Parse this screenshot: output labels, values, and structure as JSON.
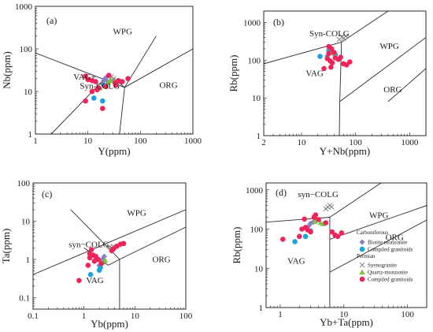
{
  "colors": {
    "biotite_monzonite": "#8b7fc7",
    "compiled_carboniferous": "#1aa3e0",
    "syenogranite": "#7f8a7f",
    "quartz_monzonite": "#7cc242",
    "compiled_permian": "#f0245a",
    "line": "#2a2a2a"
  },
  "legend": {
    "carboniferous": "Carboniferous",
    "biotite_monzonite": "Biotite monzonite",
    "compiled_carboniferous": "Compiled granitoids",
    "permian": "Permian",
    "syenogranite": "Syenogranite",
    "quartz_monzonite": "Quartz-monzonite",
    "compiled_permian": "Compiled granitoids"
  },
  "chart_data": [
    {
      "type": "scatter",
      "panel": "(a)",
      "xlabel": "Y(ppm)",
      "ylabel": "Nb(ppm)",
      "xscale": "log",
      "yscale": "log",
      "xlim": [
        1,
        1000
      ],
      "ylim": [
        1,
        1000
      ],
      "xticks": [
        1,
        10,
        100,
        1000
      ],
      "yticks": [
        1,
        10,
        100,
        1000
      ],
      "xticklabels": [
        "1",
        "10",
        "100",
        "1000"
      ],
      "yticklabels": [
        "1",
        "10",
        "100",
        "1000"
      ],
      "field_labels": [
        {
          "text": "WPG",
          "x": 30,
          "y": 220
        },
        {
          "text": "VAG+",
          "x": 5.3,
          "y": 19
        },
        {
          "text": "Syn-COLG",
          "x": 7,
          "y": 11.5
        },
        {
          "text": "ORG",
          "x": 230,
          "y": 12
        }
      ],
      "boundaries": [
        [
          [
            1,
            80
          ],
          [
            50,
            12.5
          ]
        ],
        [
          [
            50,
            12.5
          ],
          [
            200,
            200
          ]
        ],
        [
          [
            40,
            1
          ],
          [
            50,
            12.5
          ]
        ],
        [
          [
            50,
            12.5
          ],
          [
            1000,
            100
          ]
        ],
        [
          [
            25,
            25
          ],
          [
            50,
            12.5
          ]
        ],
        [
          [
            2,
            1
          ],
          [
            25,
            25
          ]
        ]
      ],
      "series": [
        {
          "name": "Biotite monzonite",
          "marker": "diamond",
          "points": [
            [
              21,
              20
            ],
            [
              20,
              18
            ],
            [
              24,
              17
            ],
            [
              19,
              15
            ],
            [
              22,
              21
            ]
          ]
        },
        {
          "name": "Compiled granitoids",
          "marker": "circle",
          "points": [
            [
              13,
              7
            ],
            [
              19,
              6
            ],
            [
              20,
              14
            ]
          ]
        },
        {
          "name": "Syenogranite",
          "marker": "cross",
          "points": [
            [
              28,
              22
            ],
            [
              31,
              20
            ],
            [
              30,
              18
            ]
          ]
        },
        {
          "name": "Quartz-monzonite",
          "marker": "triangle",
          "points": [
            [
              24,
              16
            ],
            [
              27,
              18
            ],
            [
              17,
              12
            ]
          ]
        },
        {
          "name": "Compiled granitoids",
          "marker": "circle",
          "points": [
            [
              9,
              23
            ],
            [
              10,
              19
            ],
            [
              12,
              18
            ],
            [
              14,
              17
            ],
            [
              15,
              11
            ],
            [
              16,
              12
            ],
            [
              12,
              10
            ],
            [
              9,
              6
            ],
            [
              19,
              4
            ],
            [
              22,
              13
            ],
            [
              33,
              16
            ],
            [
              38,
              18
            ],
            [
              45,
              17
            ],
            [
              58,
              20
            ],
            [
              34,
              14
            ],
            [
              25,
              24
            ]
          ]
        }
      ]
    },
    {
      "type": "scatter",
      "panel": "(b)",
      "xlabel": "Y+Nb(ppm)",
      "ylabel": "Rb(ppm)",
      "xscale": "log",
      "yscale": "log",
      "xlim": [
        2,
        2000
      ],
      "ylim": [
        1,
        2000
      ],
      "xticks": [
        2,
        10,
        100,
        1000
      ],
      "yticks": [
        1,
        10,
        100,
        1000
      ],
      "xticklabels": [
        "2",
        "10",
        "100",
        "1000"
      ],
      "yticklabels": [
        "1",
        "10",
        "100",
        "1000"
      ],
      "field_labels": [
        {
          "text": "Syn-COLG",
          "x": 14,
          "y": 430
        },
        {
          "text": "WPG",
          "x": 280,
          "y": 200
        },
        {
          "text": "VAG",
          "x": 12,
          "y": 38
        },
        {
          "text": "ORG",
          "x": 330,
          "y": 14
        }
      ],
      "boundaries": [
        [
          [
            2,
            80
          ],
          [
            55,
            300
          ]
        ],
        [
          [
            55,
            300
          ],
          [
            400,
            2000
          ]
        ],
        [
          [
            55,
            300
          ],
          [
            51,
            8
          ]
        ],
        [
          [
            51,
            8
          ],
          [
            50,
            1
          ]
        ],
        [
          [
            51,
            8
          ],
          [
            2000,
            400
          ]
        ],
        [
          [
            400,
            8
          ],
          [
            2000,
            60
          ]
        ]
      ],
      "series": [
        {
          "name": "Biotite monzonite",
          "marker": "diamond",
          "points": [
            [
              33,
              150
            ],
            [
              36,
              170
            ],
            [
              30,
              130
            ],
            [
              38,
              160
            ]
          ]
        },
        {
          "name": "Compiled granitoids",
          "marker": "circle",
          "points": [
            [
              22,
              125
            ],
            [
              42,
              140
            ],
            [
              32,
              180
            ]
          ]
        },
        {
          "name": "Syenogranite",
          "marker": "cross",
          "points": [
            [
              50,
              350
            ],
            [
              56,
              410
            ],
            [
              60,
              380
            ],
            [
              66,
              430
            ]
          ]
        },
        {
          "name": "Quartz-monzonite",
          "marker": "triangle",
          "points": [
            [
              37,
              175
            ],
            [
              40,
              150
            ]
          ]
        },
        {
          "name": "Compiled granitoids",
          "marker": "circle",
          "points": [
            [
              32,
              230
            ],
            [
              36,
              200
            ],
            [
              40,
              160
            ],
            [
              30,
              110
            ],
            [
              34,
              95
            ],
            [
              37,
              85
            ],
            [
              42,
              115
            ],
            [
              48,
              105
            ],
            [
              53,
              120
            ],
            [
              60,
              80
            ],
            [
              68,
              75
            ],
            [
              78,
              90
            ],
            [
              26,
              60
            ],
            [
              35,
              65
            ],
            [
              32,
              150
            ]
          ]
        }
      ]
    },
    {
      "type": "scatter",
      "panel": "(c)",
      "xlabel": "Yb(ppm)",
      "ylabel": "Ta(ppm)",
      "xscale": "log",
      "yscale": "log",
      "xlim": [
        0.1,
        100
      ],
      "ylim": [
        0.05,
        100
      ],
      "xticks": [
        0.1,
        1,
        10,
        100
      ],
      "yticks": [
        0.1,
        1,
        10,
        100
      ],
      "xticklabels": [
        "0.1",
        "1",
        "10",
        "100"
      ],
      "yticklabels": [
        "0.1",
        "1",
        "10",
        "100"
      ],
      "field_labels": [
        {
          "text": "WPG",
          "x": 7,
          "y": 14
        },
        {
          "text": "syn−COLG",
          "x": 0.5,
          "y": 2.1
        },
        {
          "text": "VAG",
          "x": 1.1,
          "y": 0.24
        },
        {
          "text": "ORG",
          "x": 22,
          "y": 0.85
        }
      ],
      "boundaries": [
        [
          [
            0.1,
            0.4
          ],
          [
            100,
            20
          ]
        ],
        [
          [
            0.55,
            20
          ],
          [
            3,
            2
          ]
        ],
        [
          [
            3,
            2
          ],
          [
            5,
            1
          ]
        ],
        [
          [
            1,
            2
          ],
          [
            3,
            0.7
          ]
        ],
        [
          [
            3,
            0.7
          ],
          [
            5,
            1
          ]
        ],
        [
          [
            5,
            1
          ],
          [
            100,
            7
          ]
        ],
        [
          [
            5,
            1
          ],
          [
            5,
            0.05
          ]
        ]
      ],
      "series": [
        {
          "name": "Biotite monzonite",
          "marker": "diamond",
          "points": [
            [
              2.1,
              0.9
            ],
            [
              2.3,
              1.0
            ],
            [
              2.0,
              0.7
            ],
            [
              2.5,
              1.2
            ]
          ]
        },
        {
          "name": "Compiled granitoids",
          "marker": "circle",
          "points": [
            [
              1.35,
              0.4
            ],
            [
              2.0,
              0.52
            ],
            [
              2.1,
              0.62
            ]
          ]
        },
        {
          "name": "Syenogranite",
          "marker": "cross",
          "points": [
            [
              3.2,
              2.1
            ],
            [
              3.5,
              2.0
            ],
            [
              3.8,
              2.2
            ]
          ]
        },
        {
          "name": "Quartz-monzonite",
          "marker": "triangle",
          "points": [
            [
              2.3,
              0.85
            ],
            [
              2.6,
              0.95
            ]
          ]
        },
        {
          "name": "Compiled granitoids",
          "marker": "circle",
          "points": [
            [
              0.8,
              0.28
            ],
            [
              1.3,
              1.1
            ],
            [
              1.5,
              1.3
            ],
            [
              1.7,
              1.2
            ],
            [
              1.4,
              1.8
            ],
            [
              1.6,
              0.9
            ],
            [
              1.2,
              0.7
            ],
            [
              1.9,
              1.0
            ],
            [
              2.2,
              0.78
            ],
            [
              3.5,
              1.7
            ],
            [
              3.8,
              1.9
            ],
            [
              4.4,
              2.2
            ],
            [
              5.2,
              2.5
            ],
            [
              6.0,
              2.6
            ],
            [
              1.3,
              1.4
            ]
          ]
        }
      ]
    },
    {
      "type": "scatter",
      "panel": "(d)",
      "xlabel": "Yb+Ta(ppm)",
      "ylabel": "Rb(ppm)",
      "xscale": "log",
      "yscale": "log",
      "xlim": [
        0.6,
        200
      ],
      "ylim": [
        1,
        1500
      ],
      "xticks": [
        1,
        10,
        100
      ],
      "yticks": [
        1,
        10,
        100,
        1000
      ],
      "xticklabels": [
        "1",
        "10",
        "100"
      ],
      "yticklabels": [
        "1",
        "10",
        "100",
        "1000"
      ],
      "field_labels": [
        {
          "text": "syn−COLG",
          "x": 1.9,
          "y": 650
        },
        {
          "text": "WPG",
          "x": 25,
          "y": 190
        },
        {
          "text": "ORG",
          "x": 45,
          "y": 52
        },
        {
          "text": "VAG",
          "x": 1.3,
          "y": 13
        }
      ],
      "boundaries": [
        [
          [
            0.6,
            150
          ],
          [
            6,
            200
          ]
        ],
        [
          [
            6,
            200
          ],
          [
            50,
            2000
          ]
        ],
        [
          [
            6,
            200
          ],
          [
            6,
            1
          ]
        ],
        [
          [
            6,
            55
          ],
          [
            200,
            400
          ]
        ],
        [
          [
            6,
            8
          ],
          [
            200,
            170
          ]
        ]
      ],
      "series": [
        {
          "name": "Biotite monzonite",
          "marker": "diamond",
          "points": [
            [
              3.0,
              140
            ],
            [
              3.3,
              150
            ],
            [
              2.8,
              120
            ],
            [
              3.6,
              160
            ]
          ]
        },
        {
          "name": "Compiled granitoids",
          "marker": "circle",
          "points": [
            [
              1.7,
              48
            ],
            [
              2.5,
              65
            ],
            [
              3.0,
              90
            ]
          ]
        },
        {
          "name": "Syenogranite",
          "marker": "cross",
          "points": [
            [
              5.2,
              330
            ],
            [
              5.6,
              360
            ],
            [
              6.0,
              400
            ],
            [
              6.4,
              370
            ]
          ]
        },
        {
          "name": "Quartz-monzonite",
          "marker": "triangle",
          "points": [
            [
              3.5,
              155
            ],
            [
              4.3,
              145
            ],
            [
              4.7,
              135
            ]
          ]
        },
        {
          "name": "Compiled granitoids",
          "marker": "circle",
          "points": [
            [
              1.1,
              55
            ],
            [
              2.2,
              100
            ],
            [
              2.5,
              110
            ],
            [
              2.7,
              95
            ],
            [
              3.0,
              85
            ],
            [
              3.4,
              200
            ],
            [
              3.6,
              230
            ],
            [
              4.0,
              175
            ],
            [
              2.4,
              180
            ],
            [
              5.2,
              145
            ],
            [
              6.5,
              85
            ],
            [
              8.0,
              65
            ],
            [
              9.2,
              80
            ],
            [
              7.3,
              70
            ],
            [
              2.0,
              65
            ]
          ]
        }
      ]
    }
  ]
}
